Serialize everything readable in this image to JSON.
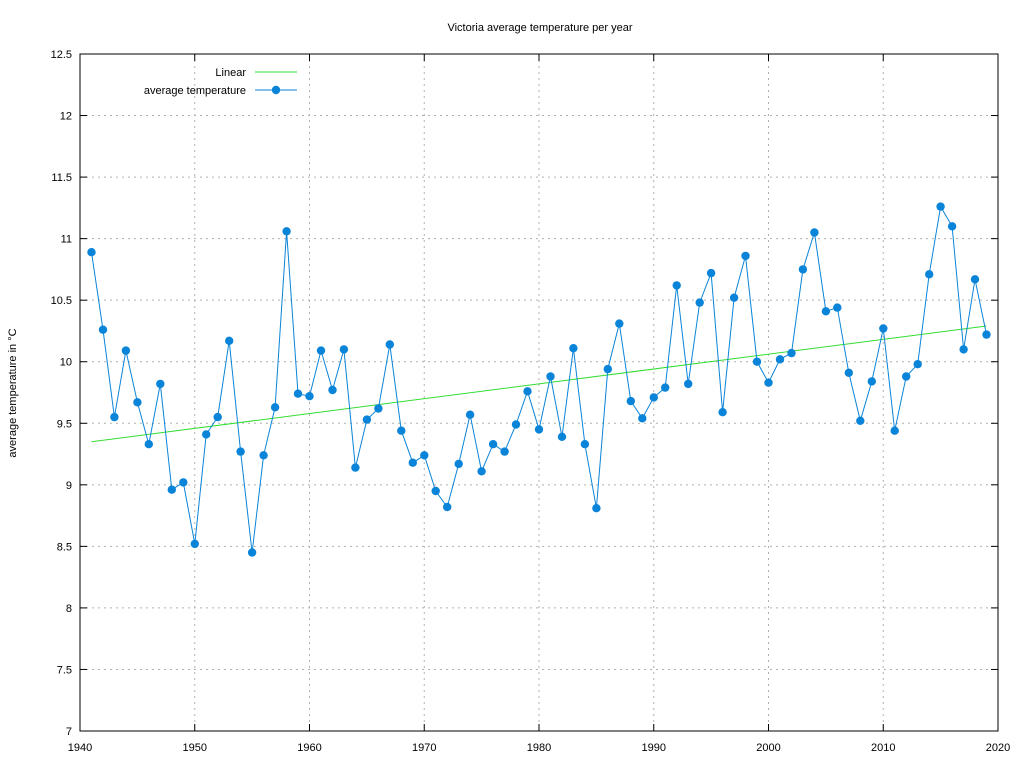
{
  "chart_data": {
    "type": "line",
    "title": "Victoria average temperature per year",
    "xlabel": "",
    "ylabel": "average temperature in °C",
    "xlim": [
      1940,
      2020
    ],
    "ylim": [
      7,
      12.5
    ],
    "xticks": [
      1940,
      1950,
      1960,
      1970,
      1980,
      1990,
      2000,
      2010,
      2020
    ],
    "yticks": [
      7,
      7.5,
      8,
      8.5,
      9,
      9.5,
      10,
      10.5,
      11,
      11.5,
      12,
      12.5
    ],
    "grid": true,
    "legend_position": "top-left",
    "series": [
      {
        "name": "average temperature",
        "color": "#0a84d8",
        "style": "linespoints",
        "x": [
          1941,
          1942,
          1943,
          1944,
          1945,
          1946,
          1947,
          1948,
          1949,
          1950,
          1951,
          1952,
          1953,
          1954,
          1955,
          1956,
          1957,
          1958,
          1959,
          1960,
          1961,
          1962,
          1963,
          1964,
          1965,
          1966,
          1967,
          1968,
          1969,
          1970,
          1971,
          1972,
          1973,
          1974,
          1975,
          1976,
          1977,
          1978,
          1979,
          1980,
          1981,
          1982,
          1983,
          1984,
          1985,
          1986,
          1987,
          1988,
          1989,
          1990,
          1991,
          1992,
          1993,
          1994,
          1995,
          1996,
          1997,
          1998,
          1999,
          2000,
          2001,
          2002,
          2003,
          2004,
          2005,
          2006,
          2007,
          2008,
          2009,
          2010,
          2011,
          2012,
          2013,
          2014,
          2015,
          2016,
          2017,
          2018,
          2019
        ],
        "y": [
          10.89,
          10.26,
          9.55,
          10.09,
          9.67,
          9.33,
          9.82,
          8.96,
          9.02,
          8.52,
          9.41,
          9.55,
          10.17,
          9.27,
          8.45,
          9.24,
          9.63,
          11.06,
          9.74,
          9.72,
          10.09,
          9.77,
          10.1,
          9.14,
          9.53,
          9.62,
          10.14,
          9.44,
          9.18,
          9.24,
          8.95,
          8.82,
          9.17,
          9.57,
          9.11,
          9.33,
          9.27,
          9.49,
          9.76,
          9.45,
          9.88,
          9.39,
          10.11,
          9.33,
          8.81,
          9.94,
          10.31,
          9.68,
          9.54,
          9.71,
          9.79,
          10.62,
          9.82,
          10.48,
          10.72,
          9.59,
          10.52,
          10.86,
          10.0,
          9.83,
          10.02,
          10.07,
          10.75,
          11.05,
          10.41,
          10.44,
          9.91,
          9.52,
          9.84,
          10.27,
          9.44,
          9.88,
          9.98,
          10.71,
          11.26,
          11.1,
          10.1,
          10.67,
          10.22
        ]
      },
      {
        "name": "Linear",
        "color": "#33dd33",
        "style": "line",
        "x": [
          1941,
          2019
        ],
        "y": [
          9.35,
          10.29
        ]
      }
    ]
  }
}
